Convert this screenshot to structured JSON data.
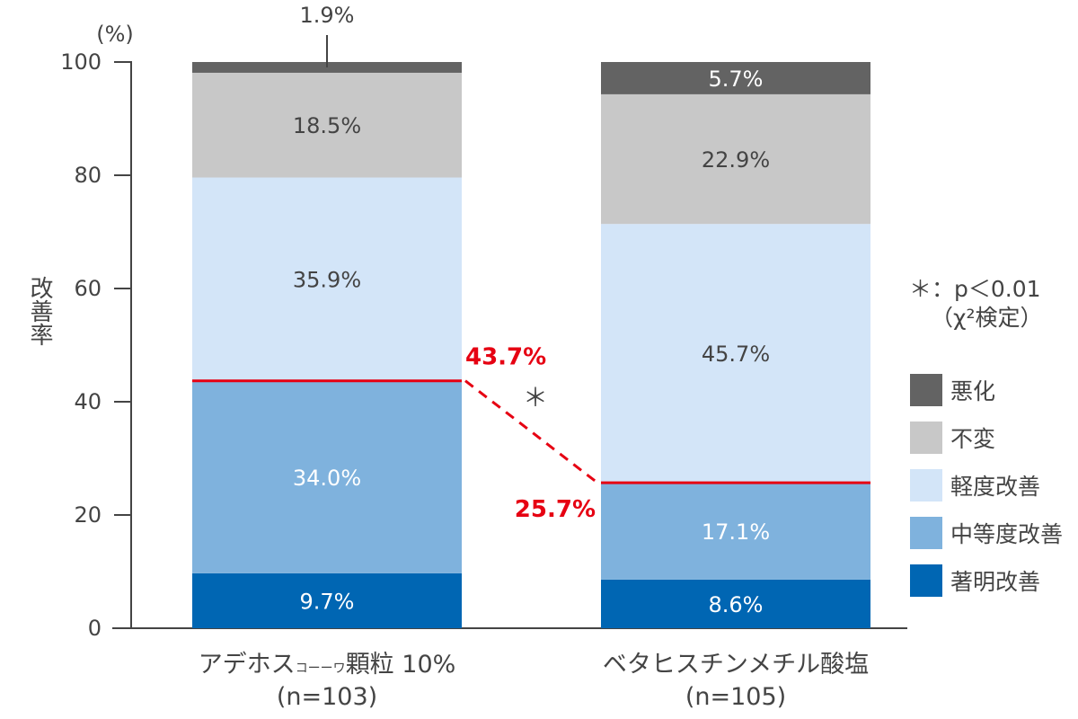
{
  "chart_data": {
    "type": "bar",
    "stacked": true,
    "y_unit": "(%)",
    "ylabel": "改善率",
    "ylim": [
      0,
      100
    ],
    "yticks": [
      0,
      20,
      40,
      60,
      80,
      100
    ],
    "categories": [
      {
        "name_main": "アデホス",
        "name_small": "コーーワ",
        "name_rest": "顆粒 10%",
        "n": "(n=103)"
      },
      {
        "name_main": "ベタヒスチンメチル酸塩",
        "name_small": "",
        "name_rest": "",
        "n": "(n=105)"
      }
    ],
    "series": [
      {
        "name": "著明改善",
        "color": "#0066b3",
        "label_color": "#ffffff",
        "values": [
          9.7,
          8.6
        ],
        "labels": [
          "9.7%",
          "8.6%"
        ]
      },
      {
        "name": "中等度改善",
        "color": "#7fb2dd",
        "label_color": "#ffffff",
        "values": [
          34.0,
          17.1
        ],
        "labels": [
          "34.0%",
          "17.1%"
        ]
      },
      {
        "name": "軽度改善",
        "color": "#d3e5f8",
        "label_color": "#444444",
        "values": [
          35.9,
          45.7
        ],
        "labels": [
          "35.9%",
          "45.7%"
        ]
      },
      {
        "name": "不変",
        "color": "#c8c8c8",
        "label_color": "#444444",
        "values": [
          18.5,
          22.9
        ],
        "labels": [
          "18.5%",
          "22.9%"
        ]
      },
      {
        "name": "悪化",
        "color": "#636363",
        "label_color": "#ffffff",
        "values": [
          1.9,
          5.7
        ],
        "labels": [
          "1.9%",
          "5.7%"
        ]
      }
    ],
    "improvement_totals": [
      {
        "value": 43.7,
        "label": "43.7%"
      },
      {
        "value": 25.7,
        "label": "25.7%"
      }
    ],
    "significance_marker": "＊",
    "annotation": {
      "line1": "＊：p＜0.01",
      "line2": "（χ²検定）"
    },
    "legend_order": [
      "悪化",
      "不変",
      "軽度改善",
      "中等度改善",
      "著明改善"
    ],
    "legend_position": "right",
    "accent_color": "#e60012"
  }
}
